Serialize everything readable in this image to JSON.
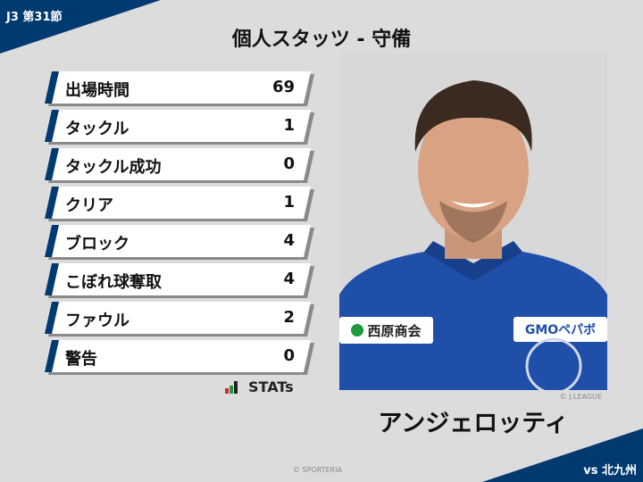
{
  "header": {
    "round": "J3 第31節",
    "title": "個人スタッツ - 守備",
    "opponent": "vs 北九州"
  },
  "stats": [
    {
      "label": "出場時間",
      "value": "69"
    },
    {
      "label": "タックル",
      "value": "1"
    },
    {
      "label": "タックル成功",
      "value": "0"
    },
    {
      "label": "クリア",
      "value": "1"
    },
    {
      "label": "ブロック",
      "value": "4"
    },
    {
      "label": "こぼれ球奪取",
      "value": "4"
    },
    {
      "label": "ファウル",
      "value": "2"
    },
    {
      "label": "警告",
      "value": "0"
    }
  ],
  "brand": {
    "stats_logo": "STATs",
    "copyright": "© SPORTERIA"
  },
  "player": {
    "name": "アンジェロッティ",
    "photo_credit": "© J.LEAGUE",
    "sponsor_1": "西原商会",
    "sponsor_2": "GMOペパボ"
  },
  "colors": {
    "navy": "#003a70",
    "background": "#dcdcdc"
  }
}
